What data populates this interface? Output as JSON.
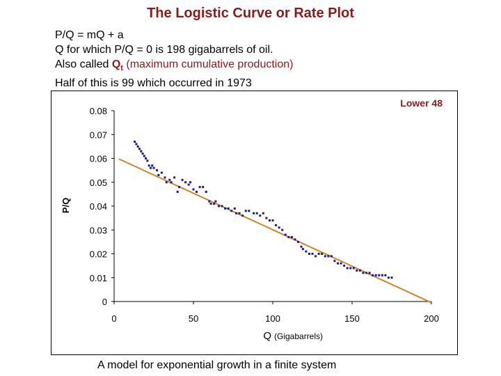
{
  "slide": {
    "title": "The Logistic Curve or Rate Plot",
    "notes": {
      "line1": "P/Q = mQ + a",
      "line2": "Q for which P/Q = 0 is 198 gigabarrels of oil.",
      "line3_prefix": "Also called ",
      "line3_symbol": "Q",
      "line3_subscript": "t",
      "line3_suffix": " (maximum cumulative production)",
      "line4": "Half of this is 99 which occurred in 1973"
    },
    "caption": "A model for exponential growth in a finite system",
    "accent_color": "#8b1a1a"
  },
  "chart_data": {
    "type": "scatter",
    "annotation": "Lower 48",
    "xlabel": "Q",
    "xlabel_unit": "(Gigabarrels)",
    "ylabel": "P/Q",
    "xlim": [
      0,
      200
    ],
    "ylim": [
      0,
      0.08
    ],
    "xticks": [
      "0",
      "50",
      "100",
      "150",
      "200"
    ],
    "yticks": [
      "0",
      "0.01",
      "0.02",
      "0.03",
      "0.04",
      "0.05",
      "0.06",
      "0.07",
      "0.08"
    ],
    "grid": false,
    "legend": "none",
    "fit_line": {
      "slope": -0.000306,
      "intercept": 0.0607,
      "x_range": [
        3,
        200
      ],
      "color": "#d4832a"
    },
    "series": [
      {
        "color": "#1a1a8a",
        "points": [
          [
            13,
            0.067
          ],
          [
            14,
            0.066
          ],
          [
            15,
            0.065
          ],
          [
            16,
            0.064
          ],
          [
            17,
            0.063
          ],
          [
            18,
            0.062
          ],
          [
            19,
            0.061
          ],
          [
            20,
            0.06
          ],
          [
            21,
            0.059
          ],
          [
            22,
            0.057
          ],
          [
            23,
            0.056
          ],
          [
            24,
            0.057
          ],
          [
            25,
            0.056
          ],
          [
            27,
            0.055
          ],
          [
            28,
            0.053
          ],
          [
            30,
            0.054
          ],
          [
            32,
            0.052
          ],
          [
            33,
            0.05
          ],
          [
            35,
            0.051
          ],
          [
            36,
            0.05
          ],
          [
            38,
            0.052
          ],
          [
            40,
            0.046
          ],
          [
            41,
            0.048
          ],
          [
            43,
            0.051
          ],
          [
            45,
            0.05
          ],
          [
            47,
            0.049
          ],
          [
            48,
            0.05
          ],
          [
            50,
            0.047
          ],
          [
            52,
            0.046
          ],
          [
            54,
            0.048
          ],
          [
            56,
            0.048
          ],
          [
            58,
            0.046
          ],
          [
            60,
            0.042
          ],
          [
            61,
            0.041
          ],
          [
            63,
            0.041
          ],
          [
            64,
            0.042
          ],
          [
            66,
            0.04
          ],
          [
            68,
            0.04
          ],
          [
            70,
            0.039
          ],
          [
            72,
            0.039
          ],
          [
            74,
            0.038
          ],
          [
            76,
            0.039
          ],
          [
            77,
            0.037
          ],
          [
            79,
            0.037
          ],
          [
            81,
            0.036
          ],
          [
            83,
            0.038
          ],
          [
            85,
            0.038
          ],
          [
            88,
            0.037
          ],
          [
            90,
            0.037
          ],
          [
            92,
            0.036
          ],
          [
            94,
            0.037
          ],
          [
            96,
            0.035
          ],
          [
            98,
            0.034
          ],
          [
            100,
            0.034
          ],
          [
            102,
            0.032
          ],
          [
            104,
            0.031
          ],
          [
            106,
            0.03
          ],
          [
            108,
            0.028
          ],
          [
            110,
            0.027
          ],
          [
            112,
            0.027
          ],
          [
            114,
            0.026
          ],
          [
            116,
            0.025
          ],
          [
            118,
            0.023
          ],
          [
            119,
            0.022
          ],
          [
            121,
            0.021
          ],
          [
            123,
            0.02
          ],
          [
            125,
            0.02
          ],
          [
            127,
            0.019
          ],
          [
            129,
            0.02
          ],
          [
            131,
            0.02
          ],
          [
            133,
            0.019
          ],
          [
            135,
            0.019
          ],
          [
            137,
            0.019
          ],
          [
            139,
            0.017
          ],
          [
            141,
            0.016
          ],
          [
            143,
            0.016
          ],
          [
            145,
            0.015
          ],
          [
            147,
            0.014
          ],
          [
            149,
            0.014
          ],
          [
            151,
            0.014
          ],
          [
            153,
            0.013
          ],
          [
            155,
            0.013
          ],
          [
            157,
            0.012
          ],
          [
            159,
            0.012
          ],
          [
            161,
            0.012
          ],
          [
            163,
            0.011
          ],
          [
            165,
            0.011
          ],
          [
            167,
            0.011
          ],
          [
            169,
            0.011
          ],
          [
            171,
            0.011
          ],
          [
            173,
            0.01
          ],
          [
            175,
            0.01
          ]
        ]
      }
    ]
  }
}
